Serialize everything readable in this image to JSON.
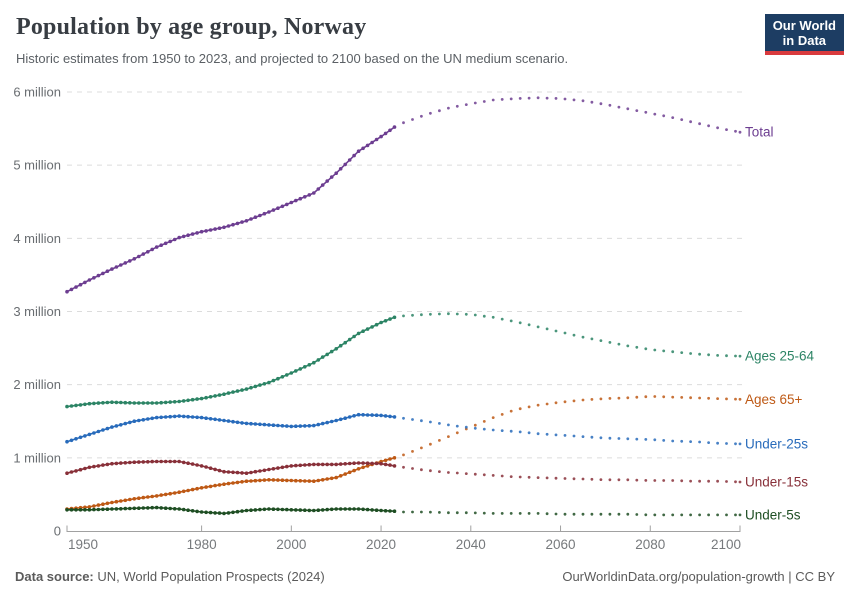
{
  "header": {
    "title": "Population by age group, Norway",
    "subtitle": "Historic estimates from 1950 to 2023, and projected to 2100 based on the UN medium scenario."
  },
  "logo": {
    "line1": "Our World",
    "line2": "in Data"
  },
  "footer": {
    "source_label": "Data source:",
    "source_text": " UN, World Population Prospects (2024)",
    "link": "OurWorldinData.org/population-growth | CC BY"
  },
  "chart_data": {
    "type": "line",
    "unit": "people (millions)",
    "x_range": [
      1950,
      2100
    ],
    "y_range": [
      0,
      6.3
    ],
    "grid": true,
    "projection_start": 2023,
    "x_ticks": [
      1950,
      1980,
      2000,
      2020,
      2040,
      2060,
      2080,
      2100
    ],
    "y_ticks": [
      {
        "v": 0,
        "label": "0"
      },
      {
        "v": 1,
        "label": "1 million"
      },
      {
        "v": 2,
        "label": "2 million"
      },
      {
        "v": 3,
        "label": "3 million"
      },
      {
        "v": 4,
        "label": "4 million"
      },
      {
        "v": 5,
        "label": "5 million"
      },
      {
        "v": 6,
        "label": "6 million"
      }
    ],
    "series": [
      {
        "name": "Total",
        "color": "#6d3e91",
        "historical": [
          [
            1950,
            3.27
          ],
          [
            1955,
            3.43
          ],
          [
            1960,
            3.58
          ],
          [
            1965,
            3.72
          ],
          [
            1970,
            3.88
          ],
          [
            1975,
            4.01
          ],
          [
            1980,
            4.09
          ],
          [
            1985,
            4.15
          ],
          [
            1990,
            4.24
          ],
          [
            1995,
            4.36
          ],
          [
            2000,
            4.49
          ],
          [
            2005,
            4.62
          ],
          [
            2010,
            4.89
          ],
          [
            2015,
            5.19
          ],
          [
            2020,
            5.39
          ],
          [
            2023,
            5.52
          ]
        ],
        "projected": [
          [
            2023,
            5.52
          ],
          [
            2025,
            5.58
          ],
          [
            2030,
            5.69
          ],
          [
            2035,
            5.78
          ],
          [
            2040,
            5.84
          ],
          [
            2045,
            5.89
          ],
          [
            2050,
            5.91
          ],
          [
            2055,
            5.92
          ],
          [
            2060,
            5.91
          ],
          [
            2065,
            5.88
          ],
          [
            2070,
            5.83
          ],
          [
            2075,
            5.77
          ],
          [
            2080,
            5.71
          ],
          [
            2085,
            5.65
          ],
          [
            2090,
            5.58
          ],
          [
            2095,
            5.51
          ],
          [
            2100,
            5.45
          ]
        ]
      },
      {
        "name": "Ages 25-64",
        "color": "#2c8465",
        "historical": [
          [
            1950,
            1.7
          ],
          [
            1955,
            1.74
          ],
          [
            1960,
            1.76
          ],
          [
            1965,
            1.75
          ],
          [
            1970,
            1.75
          ],
          [
            1975,
            1.77
          ],
          [
            1980,
            1.81
          ],
          [
            1985,
            1.87
          ],
          [
            1990,
            1.94
          ],
          [
            1995,
            2.03
          ],
          [
            2000,
            2.16
          ],
          [
            2005,
            2.3
          ],
          [
            2010,
            2.49
          ],
          [
            2015,
            2.7
          ],
          [
            2020,
            2.85
          ],
          [
            2023,
            2.92
          ]
        ],
        "projected": [
          [
            2023,
            2.92
          ],
          [
            2025,
            2.94
          ],
          [
            2030,
            2.96
          ],
          [
            2035,
            2.97
          ],
          [
            2040,
            2.96
          ],
          [
            2045,
            2.92
          ],
          [
            2050,
            2.86
          ],
          [
            2055,
            2.79
          ],
          [
            2060,
            2.72
          ],
          [
            2065,
            2.65
          ],
          [
            2070,
            2.59
          ],
          [
            2075,
            2.53
          ],
          [
            2080,
            2.48
          ],
          [
            2085,
            2.45
          ],
          [
            2090,
            2.42
          ],
          [
            2095,
            2.4
          ],
          [
            2100,
            2.39
          ]
        ]
      },
      {
        "name": "Ages 65+",
        "color": "#be5915",
        "historical": [
          [
            1950,
            0.3
          ],
          [
            1955,
            0.33
          ],
          [
            1960,
            0.39
          ],
          [
            1965,
            0.44
          ],
          [
            1970,
            0.48
          ],
          [
            1975,
            0.53
          ],
          [
            1980,
            0.59
          ],
          [
            1985,
            0.64
          ],
          [
            1990,
            0.68
          ],
          [
            1995,
            0.7
          ],
          [
            2000,
            0.69
          ],
          [
            2005,
            0.68
          ],
          [
            2010,
            0.73
          ],
          [
            2015,
            0.85
          ],
          [
            2020,
            0.95
          ],
          [
            2023,
            1.0
          ]
        ],
        "projected": [
          [
            2023,
            1.0
          ],
          [
            2025,
            1.04
          ],
          [
            2030,
            1.16
          ],
          [
            2035,
            1.29
          ],
          [
            2040,
            1.42
          ],
          [
            2045,
            1.55
          ],
          [
            2050,
            1.66
          ],
          [
            2055,
            1.72
          ],
          [
            2060,
            1.76
          ],
          [
            2065,
            1.79
          ],
          [
            2070,
            1.81
          ],
          [
            2075,
            1.82
          ],
          [
            2080,
            1.84
          ],
          [
            2085,
            1.83
          ],
          [
            2090,
            1.82
          ],
          [
            2095,
            1.81
          ],
          [
            2100,
            1.8
          ]
        ]
      },
      {
        "name": "Under-25s",
        "color": "#286bbb",
        "historical": [
          [
            1950,
            1.22
          ],
          [
            1955,
            1.32
          ],
          [
            1960,
            1.42
          ],
          [
            1965,
            1.5
          ],
          [
            1970,
            1.55
          ],
          [
            1975,
            1.57
          ],
          [
            1980,
            1.55
          ],
          [
            1985,
            1.51
          ],
          [
            1990,
            1.47
          ],
          [
            1995,
            1.45
          ],
          [
            2000,
            1.43
          ],
          [
            2005,
            1.44
          ],
          [
            2010,
            1.51
          ],
          [
            2015,
            1.59
          ],
          [
            2020,
            1.58
          ],
          [
            2023,
            1.56
          ]
        ],
        "projected": [
          [
            2023,
            1.56
          ],
          [
            2025,
            1.54
          ],
          [
            2030,
            1.5
          ],
          [
            2035,
            1.45
          ],
          [
            2040,
            1.41
          ],
          [
            2045,
            1.38
          ],
          [
            2050,
            1.36
          ],
          [
            2055,
            1.33
          ],
          [
            2060,
            1.31
          ],
          [
            2065,
            1.29
          ],
          [
            2070,
            1.27
          ],
          [
            2075,
            1.26
          ],
          [
            2080,
            1.25
          ],
          [
            2085,
            1.23
          ],
          [
            2090,
            1.22
          ],
          [
            2095,
            1.2
          ],
          [
            2100,
            1.19
          ]
        ]
      },
      {
        "name": "Under-15s",
        "color": "#883039",
        "historical": [
          [
            1950,
            0.79
          ],
          [
            1955,
            0.87
          ],
          [
            1960,
            0.92
          ],
          [
            1965,
            0.94
          ],
          [
            1970,
            0.95
          ],
          [
            1975,
            0.95
          ],
          [
            1980,
            0.89
          ],
          [
            1985,
            0.81
          ],
          [
            1990,
            0.79
          ],
          [
            1995,
            0.84
          ],
          [
            2000,
            0.89
          ],
          [
            2005,
            0.91
          ],
          [
            2010,
            0.91
          ],
          [
            2015,
            0.93
          ],
          [
            2020,
            0.92
          ],
          [
            2023,
            0.89
          ]
        ],
        "projected": [
          [
            2023,
            0.89
          ],
          [
            2025,
            0.87
          ],
          [
            2030,
            0.83
          ],
          [
            2035,
            0.8
          ],
          [
            2040,
            0.78
          ],
          [
            2045,
            0.76
          ],
          [
            2050,
            0.74
          ],
          [
            2055,
            0.73
          ],
          [
            2060,
            0.72
          ],
          [
            2065,
            0.71
          ],
          [
            2070,
            0.7
          ],
          [
            2075,
            0.7
          ],
          [
            2080,
            0.69
          ],
          [
            2085,
            0.69
          ],
          [
            2090,
            0.68
          ],
          [
            2095,
            0.68
          ],
          [
            2100,
            0.67
          ]
        ]
      },
      {
        "name": "Under-5s",
        "color": "#1e4e23",
        "historical": [
          [
            1950,
            0.29
          ],
          [
            1955,
            0.29
          ],
          [
            1960,
            0.3
          ],
          [
            1965,
            0.31
          ],
          [
            1970,
            0.32
          ],
          [
            1975,
            0.3
          ],
          [
            1980,
            0.26
          ],
          [
            1985,
            0.24
          ],
          [
            1990,
            0.28
          ],
          [
            1995,
            0.3
          ],
          [
            2000,
            0.29
          ],
          [
            2005,
            0.28
          ],
          [
            2010,
            0.3
          ],
          [
            2015,
            0.3
          ],
          [
            2020,
            0.28
          ],
          [
            2023,
            0.27
          ]
        ],
        "projected": [
          [
            2023,
            0.27
          ],
          [
            2025,
            0.26
          ],
          [
            2030,
            0.26
          ],
          [
            2035,
            0.25
          ],
          [
            2040,
            0.25
          ],
          [
            2045,
            0.24
          ],
          [
            2050,
            0.24
          ],
          [
            2055,
            0.24
          ],
          [
            2060,
            0.23
          ],
          [
            2065,
            0.23
          ],
          [
            2070,
            0.23
          ],
          [
            2075,
            0.23
          ],
          [
            2080,
            0.22
          ],
          [
            2085,
            0.22
          ],
          [
            2090,
            0.22
          ],
          [
            2095,
            0.22
          ],
          [
            2100,
            0.22
          ]
        ]
      }
    ]
  }
}
